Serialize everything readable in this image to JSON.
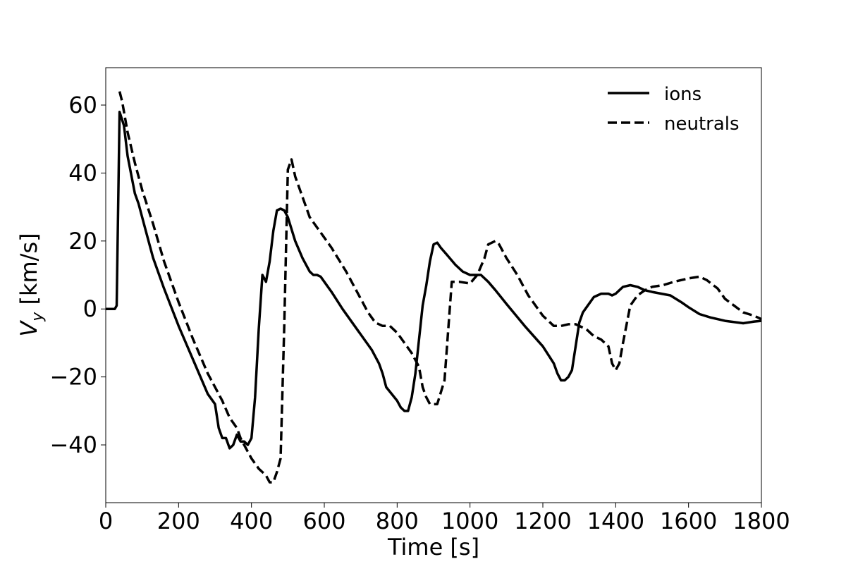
{
  "chart_data": {
    "type": "line",
    "title": "",
    "xlabel": "Time [s]",
    "ylabel_main": "V",
    "ylabel_sub": "y",
    "ylabel_unit": " [km/s]",
    "xlim": [
      0,
      1800
    ],
    "ylim": [
      -57,
      71
    ],
    "xticks": [
      0,
      200,
      400,
      600,
      800,
      1000,
      1200,
      1400,
      1600,
      1800
    ],
    "yticks": [
      -40,
      -20,
      0,
      20,
      40,
      60
    ],
    "ytick_labels": [
      "−40",
      "−20",
      "0",
      "20",
      "40",
      "60"
    ],
    "grid": false,
    "legend_position": "top-right",
    "series": [
      {
        "name": "ions",
        "line_style": "solid",
        "color": "#000000",
        "x": [
          0,
          25,
          30,
          38,
          50,
          60,
          80,
          90,
          110,
          130,
          160,
          200,
          240,
          280,
          300,
          310,
          320,
          330,
          340,
          350,
          360,
          370,
          380,
          390,
          400,
          410,
          420,
          430,
          440,
          450,
          460,
          470,
          480,
          490,
          500,
          520,
          540,
          560,
          570,
          580,
          590,
          600,
          620,
          650,
          690,
          730,
          750,
          760,
          770,
          800,
          810,
          820,
          830,
          840,
          850,
          870,
          880,
          890,
          900,
          910,
          920,
          940,
          960,
          980,
          1000,
          1030,
          1050,
          1070,
          1100,
          1150,
          1200,
          1230,
          1240,
          1250,
          1260,
          1270,
          1280,
          1290,
          1300,
          1310,
          1320,
          1340,
          1360,
          1380,
          1390,
          1400,
          1410,
          1420,
          1440,
          1460,
          1480,
          1500,
          1550,
          1580,
          1600,
          1630,
          1660,
          1700,
          1750,
          1780,
          1800
        ],
        "y": [
          0,
          0,
          1,
          58,
          54,
          45,
          34,
          31,
          23,
          15,
          6,
          -5,
          -15,
          -25,
          -28,
          -35,
          -38,
          -38,
          -41,
          -40,
          -37,
          -39,
          -39,
          -40,
          -38,
          -26,
          -6,
          10,
          8,
          14,
          23,
          29,
          29.5,
          29,
          27,
          20,
          15,
          11,
          10,
          10,
          9.5,
          8,
          5,
          0,
          -6,
          -12,
          -16,
          -19,
          -23,
          -27,
          -29,
          -30,
          -30,
          -26,
          -19,
          1,
          7,
          14,
          19,
          19.5,
          18,
          15.5,
          13,
          11,
          10,
          10,
          8,
          5.5,
          1.5,
          -5,
          -11,
          -16,
          -19,
          -21,
          -21,
          -20,
          -18,
          -11,
          -4,
          -1,
          0.5,
          3.5,
          4.5,
          4.5,
          4,
          4.5,
          5.5,
          6.5,
          7,
          6.5,
          5.5,
          5,
          4,
          2,
          0.5,
          -1.5,
          -2.5,
          -3.5,
          -4.2,
          -3.7,
          -3.5
        ]
      },
      {
        "name": "neutrals",
        "line_style": "dashed",
        "color": "#000000",
        "x": [
          38,
          45,
          60,
          80,
          100,
          130,
          160,
          200,
          240,
          280,
          300,
          320,
          340,
          360,
          370,
          380,
          400,
          420,
          430,
          440,
          450,
          460,
          470,
          480,
          490,
          500,
          510,
          520,
          540,
          560,
          580,
          620,
          660,
          700,
          720,
          740,
          760,
          780,
          800,
          820,
          840,
          860,
          870,
          880,
          890,
          900,
          910,
          930,
          950,
          960,
          970,
          1000,
          1020,
          1040,
          1050,
          1060,
          1070,
          1080,
          1100,
          1130,
          1160,
          1200,
          1230,
          1250,
          1270,
          1290,
          1300,
          1320,
          1340,
          1360,
          1380,
          1390,
          1400,
          1410,
          1420,
          1440,
          1460,
          1480,
          1500,
          1530,
          1560,
          1600,
          1630,
          1650,
          1680,
          1700,
          1750,
          1780,
          1800
        ],
        "y": [
          64,
          61,
          52,
          43,
          35,
          25,
          14,
          2,
          -9,
          -19,
          -23,
          -27,
          -32,
          -35,
          -38,
          -40,
          -44,
          -47,
          -48,
          -49,
          -51,
          -51,
          -48,
          -44,
          -5,
          41,
          44,
          39,
          33,
          27,
          24,
          18,
          11,
          3,
          -1,
          -4,
          -5,
          -5,
          -7,
          -10,
          -13,
          -17,
          -23,
          -26,
          -28,
          -28,
          -28,
          -21,
          8,
          8,
          8,
          7.5,
          10,
          15,
          19,
          19.5,
          20,
          19,
          15,
          10,
          4,
          -2,
          -5,
          -5,
          -4.5,
          -4.5,
          -5,
          -6,
          -8,
          -9,
          -11,
          -16,
          -18,
          -16,
          -10,
          1,
          4,
          5.5,
          6.5,
          7,
          8,
          9,
          9.5,
          8.5,
          6,
          3,
          -1,
          -2,
          -3
        ]
      }
    ]
  }
}
